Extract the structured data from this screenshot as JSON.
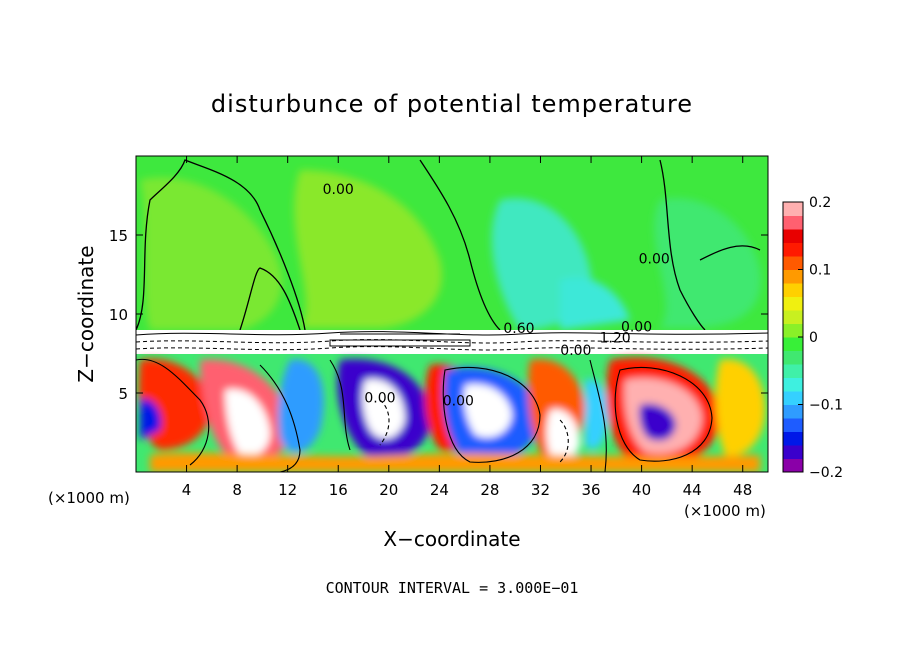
{
  "chart_data": {
    "type": "heatmap",
    "title": "disturbunce of potential temperature",
    "xlabel": "X−coordinate",
    "ylabel": "Z−coordinate",
    "x_unit": "(×1000 m)",
    "z_unit": "(×1000 m)",
    "xlim": [
      0,
      50
    ],
    "ylim": [
      0,
      20
    ],
    "x_ticks": [
      4,
      8,
      12,
      16,
      20,
      24,
      28,
      32,
      36,
      40,
      44,
      48
    ],
    "y_ticks": [
      5,
      10,
      15
    ],
    "colorbar": {
      "range": [
        -0.2,
        0.2
      ],
      "tick_values": [
        0.2,
        0.1,
        0,
        -0.1,
        -0.2
      ],
      "tick_labels": [
        "0.2",
        "0.1",
        "0",
        "−0.1",
        "−0.2"
      ],
      "colors": [
        "#8a00a8",
        "#3a00cc",
        "#0018e8",
        "#1e5cff",
        "#2f9cff",
        "#35d0ff",
        "#3ef0e0",
        "#40f0a8",
        "#40e870",
        "#38f038",
        "#8af028",
        "#c8f020",
        "#f0f010",
        "#ffd000",
        "#ff9a00",
        "#ff5a00",
        "#ff1a00",
        "#e80000",
        "#ff6070",
        "#ffb0b0"
      ]
    },
    "contour_labels": [
      {
        "x": 16,
        "y": 17.6,
        "text": "0.00"
      },
      {
        "x": 41,
        "y": 13.2,
        "text": "0.00"
      },
      {
        "x": 30.3,
        "y": 8.8,
        "text": "0.60"
      },
      {
        "x": 39.6,
        "y": 8.9,
        "text": "0.00"
      },
      {
        "x": 37.9,
        "y": 8.2,
        "text": "1.20"
      },
      {
        "x": 34.8,
        "y": 7.4,
        "text": "0.00"
      },
      {
        "x": 19.3,
        "y": 4.4,
        "text": "0.00"
      },
      {
        "x": 25.5,
        "y": 4.2,
        "text": "0.00"
      }
    ],
    "annotation": "CONTOUR INTERVAL = 3.000E−01",
    "grid": false
  }
}
